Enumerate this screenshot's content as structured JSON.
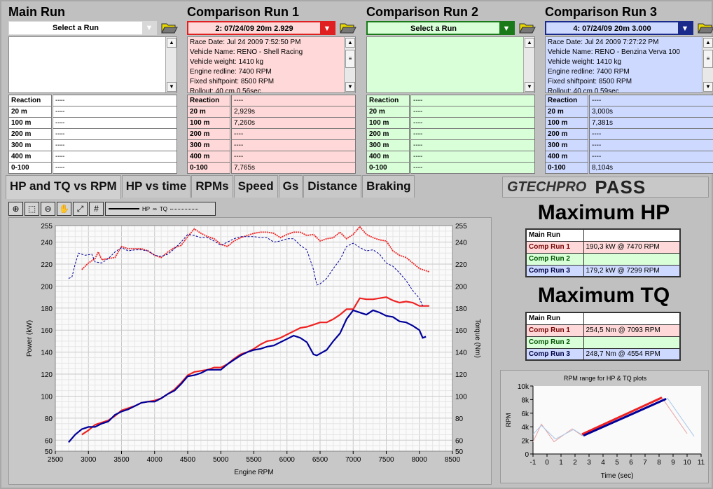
{
  "colors": {
    "main": "#ffffff",
    "run1": "#ffd9d9",
    "run2": "#d9ffd9",
    "run3": "#cdd9ff",
    "run1_accent": "#e02020",
    "run2_accent": "#1a7a1a",
    "run3_accent": "#1a2a8a",
    "red_line": "#ee2222",
    "blue_line": "#000099"
  },
  "panels": [
    {
      "title": "Main Run",
      "select": "Select a Run",
      "info": [],
      "rows": [
        [
          "Reaction",
          "----"
        ],
        [
          "20 m",
          "----"
        ],
        [
          "100 m",
          "----"
        ],
        [
          "200 m",
          "----"
        ],
        [
          "300 m",
          "----"
        ],
        [
          "400 m",
          "----"
        ],
        [
          "0-100",
          "----"
        ]
      ]
    },
    {
      "title": "Comparison Run 1",
      "select": "2:  07/24/09 20m  2.929",
      "info": [
        "Race Date: Jul 24 2009  7:52:50 PM",
        "Vehicle Name: RENO - Shell Racing",
        "Vehicle weight: 1410 kg",
        "Engine redline: 7400 RPM",
        "Fixed shiftpoint: 8500 RPM",
        "Rollout: 40 cm  0.56sec"
      ],
      "rows": [
        [
          "Reaction",
          "----"
        ],
        [
          "20 m",
          "2,929s"
        ],
        [
          "100 m",
          "7,260s"
        ],
        [
          "200 m",
          "----"
        ],
        [
          "300 m",
          "----"
        ],
        [
          "400 m",
          "----"
        ],
        [
          "0-100",
          "7,765s"
        ]
      ]
    },
    {
      "title": "Comparison Run 2",
      "select": "Select a Run",
      "info": [],
      "rows": [
        [
          "Reaction",
          "----"
        ],
        [
          "20 m",
          "----"
        ],
        [
          "100 m",
          "----"
        ],
        [
          "200 m",
          "----"
        ],
        [
          "300 m",
          "----"
        ],
        [
          "400 m",
          "----"
        ],
        [
          "0-100",
          "----"
        ]
      ]
    },
    {
      "title": "Comparison Run 3",
      "select": "4:  07/24/09 20m  3.000",
      "info": [
        "Race Date: Jul 24 2009  7:27:22 PM",
        "Vehicle Name: RENO - Benzina Verva 100",
        "Vehicle weight: 1410 kg",
        "Engine redline: 7400 RPM",
        "Fixed shiftpoint: 8500 RPM",
        "Rollout: 40 cm  0.59sec"
      ],
      "rows": [
        [
          "Reaction",
          "----"
        ],
        [
          "20 m",
          "3,000s"
        ],
        [
          "100 m",
          "7,381s"
        ],
        [
          "200 m",
          "----"
        ],
        [
          "300 m",
          "----"
        ],
        [
          "400 m",
          "----"
        ],
        [
          "0-100",
          "8,104s"
        ]
      ]
    }
  ],
  "tabs": [
    "HP and TQ vs RPM",
    "HP vs time",
    "RPMs",
    "Speed",
    "Gs",
    "Distance",
    "Braking"
  ],
  "logo": {
    "brand": "GTECHPRO",
    "product": "PASS"
  },
  "toolbar": {
    "icons": [
      "zoom-in-icon",
      "zoom-rect-icon",
      "zoom-out-icon",
      "pan-hand-icon",
      "fit-icon",
      "grid-icon"
    ],
    "legend_hp": "HP",
    "legend_tq": "TQ"
  },
  "max_hp": {
    "title": "Maximum HP",
    "rows": [
      [
        "Main Run",
        ""
      ],
      [
        "Comp Run 1",
        "190,3 kW @ 7470 RPM"
      ],
      [
        "Comp Run 2",
        ""
      ],
      [
        "Comp Run 3",
        "179,2 kW @ 7299 RPM"
      ]
    ]
  },
  "max_tq": {
    "title": "Maximum TQ",
    "rows": [
      [
        "Main Run",
        ""
      ],
      [
        "Comp Run 1",
        "254,5 Nm @ 7093 RPM"
      ],
      [
        "Comp Run 2",
        ""
      ],
      [
        "Comp Run 3",
        "248,7 Nm @ 4554 RPM"
      ]
    ]
  },
  "chart_data": [
    {
      "type": "line",
      "xlabel": "Engine RPM",
      "ylabel": "Power (kW)",
      "y2label": "Torque (Nm)",
      "xlim": [
        2500,
        8500
      ],
      "ylim": [
        50,
        255
      ],
      "y2lim": [
        50,
        255
      ],
      "xticks": [
        2500,
        3000,
        3500,
        4000,
        4500,
        5000,
        5500,
        6000,
        6500,
        7000,
        7500,
        8000,
        8500
      ],
      "yticks": [
        50,
        60,
        80,
        100,
        120,
        140,
        160,
        180,
        200,
        220,
        240,
        255
      ],
      "grid": true,
      "series": [
        {
          "run": "Comp Run 1",
          "kind": "power",
          "style": "solid",
          "color": "#ee2222",
          "x": [
            2900,
            3000,
            3100,
            3200,
            3300,
            3400,
            3500,
            3600,
            3700,
            3800,
            3900,
            4000,
            4100,
            4200,
            4300,
            4400,
            4500,
            4600,
            4700,
            4800,
            4900,
            5000,
            5100,
            5200,
            5300,
            5400,
            5500,
            5600,
            5700,
            5800,
            5900,
            6000,
            6100,
            6200,
            6300,
            6400,
            6500,
            6600,
            6700,
            6800,
            6900,
            7000,
            7100,
            7200,
            7300,
            7400,
            7500,
            7600,
            7700,
            7800,
            7900,
            8000,
            8150
          ],
          "y": [
            65,
            69,
            74,
            76,
            78,
            82,
            87,
            89,
            91,
            94,
            95,
            96,
            98,
            102,
            106,
            112,
            119,
            122,
            123,
            124,
            126,
            126,
            129,
            134,
            138,
            140,
            143,
            147,
            150,
            151,
            153,
            156,
            159,
            162,
            163,
            165,
            167,
            167,
            170,
            174,
            179,
            179,
            189,
            188,
            188,
            189,
            190,
            187,
            185,
            186,
            185,
            182,
            182
          ]
        },
        {
          "run": "Comp Run 3",
          "kind": "power",
          "style": "solid",
          "color": "#000099",
          "x": [
            2700,
            2800,
            2900,
            3000,
            3100,
            3200,
            3300,
            3400,
            3500,
            3600,
            3700,
            3800,
            3900,
            4000,
            4100,
            4200,
            4300,
            4400,
            4500,
            4600,
            4700,
            4800,
            4900,
            5000,
            5100,
            5200,
            5300,
            5400,
            5500,
            5600,
            5700,
            5800,
            5900,
            6000,
            6100,
            6200,
            6300,
            6400,
            6450,
            6600,
            6700,
            6800,
            6900,
            7000,
            7100,
            7200,
            7300,
            7400,
            7500,
            7600,
            7700,
            7800,
            7900,
            8000,
            8050,
            8100
          ],
          "y": [
            58,
            65,
            70,
            72,
            72,
            75,
            77,
            83,
            86,
            88,
            91,
            94,
            95,
            95,
            98,
            102,
            105,
            111,
            118,
            119,
            121,
            124,
            124,
            124,
            129,
            133,
            137,
            140,
            142,
            143,
            145,
            146,
            149,
            152,
            155,
            153,
            149,
            138,
            137,
            142,
            150,
            157,
            170,
            178,
            176,
            174,
            178,
            176,
            173,
            172,
            168,
            167,
            164,
            160,
            153,
            154
          ]
        },
        {
          "run": "Comp Run 1",
          "kind": "torque",
          "style": "dashed",
          "color": "#ee2222",
          "x": [
            2900,
            3000,
            3100,
            3150,
            3200,
            3300,
            3400,
            3500,
            3600,
            3700,
            3800,
            3900,
            4000,
            4100,
            4200,
            4300,
            4400,
            4500,
            4600,
            4700,
            4800,
            4900,
            5000,
            5100,
            5200,
            5300,
            5400,
            5500,
            5600,
            5700,
            5800,
            5900,
            6000,
            6100,
            6200,
            6300,
            6400,
            6500,
            6600,
            6700,
            6800,
            6900,
            7000,
            7100,
            7200,
            7300,
            7400,
            7500,
            7600,
            7700,
            7800,
            7900,
            8000,
            8150
          ],
          "y": [
            215,
            221,
            225,
            231,
            224,
            225,
            226,
            236,
            234,
            234,
            234,
            232,
            228,
            226,
            231,
            235,
            237,
            245,
            252,
            248,
            245,
            243,
            238,
            236,
            241,
            244,
            246,
            248,
            249,
            249,
            248,
            244,
            247,
            249,
            249,
            246,
            247,
            241,
            243,
            244,
            249,
            243,
            247,
            254,
            247,
            244,
            242,
            241,
            232,
            228,
            226,
            221,
            216,
            213
          ]
        },
        {
          "run": "Comp Run 3",
          "kind": "torque",
          "style": "dashed",
          "color": "#000099",
          "x": [
            2700,
            2750,
            2800,
            2850,
            2950,
            3050,
            3100,
            3200,
            3300,
            3400,
            3500,
            3600,
            3700,
            3800,
            3900,
            4000,
            4100,
            4200,
            4300,
            4400,
            4500,
            4600,
            4700,
            4800,
            4900,
            5000,
            5100,
            5200,
            5300,
            5400,
            5500,
            5600,
            5700,
            5800,
            5900,
            6000,
            6100,
            6200,
            6300,
            6400,
            6450,
            6500,
            6600,
            6700,
            6800,
            6900,
            7000,
            7100,
            7200,
            7300,
            7400,
            7500,
            7600,
            7700,
            7800,
            7900,
            8000,
            8050
          ],
          "y": [
            207,
            208,
            220,
            230,
            228,
            229,
            222,
            221,
            225,
            231,
            235,
            232,
            233,
            233,
            232,
            228,
            227,
            229,
            234,
            240,
            247,
            246,
            244,
            244,
            241,
            237,
            240,
            243,
            245,
            245,
            245,
            244,
            244,
            240,
            241,
            243,
            243,
            237,
            233,
            215,
            201,
            202,
            207,
            216,
            224,
            236,
            239,
            235,
            232,
            233,
            229,
            221,
            218,
            212,
            205,
            196,
            189,
            182
          ]
        }
      ]
    },
    {
      "type": "line",
      "title": "RPM range for HP & TQ plots",
      "xlabel": "Time (sec)",
      "ylabel": "RPM",
      "xlim": [
        -1,
        11
      ],
      "ylim": [
        0,
        10000
      ],
      "xticks": [
        -1,
        0,
        1,
        2,
        3,
        4,
        5,
        6,
        7,
        8,
        9,
        10,
        11
      ],
      "yticks": [
        "0",
        "2k",
        "4k",
        "6k",
        "8k",
        "10k"
      ],
      "series": [
        {
          "run": "Comp Run 1",
          "kind": "full",
          "color": "#e8a0a0",
          "x": [
            -1,
            -0.4,
            0.5,
            1.8,
            2.5,
            8.2,
            10
          ],
          "y": [
            1800,
            4400,
            1800,
            3700,
            2700,
            8300,
            3000
          ]
        },
        {
          "run": "Comp Run 3",
          "kind": "full",
          "color": "#a8c8e8",
          "x": [
            -1,
            -0.4,
            0.6,
            1.9,
            2.6,
            8.6,
            10.5
          ],
          "y": [
            2900,
            4200,
            2200,
            3600,
            2700,
            8200,
            2600
          ]
        },
        {
          "run": "Comp Run 1",
          "kind": "range",
          "color": "#ee2222",
          "x": [
            2.5,
            8.2
          ],
          "y": [
            2900,
            8300
          ]
        },
        {
          "run": "Comp Run 3",
          "kind": "range",
          "color": "#000099",
          "x": [
            2.6,
            8.5
          ],
          "y": [
            2700,
            8100
          ]
        }
      ]
    }
  ]
}
